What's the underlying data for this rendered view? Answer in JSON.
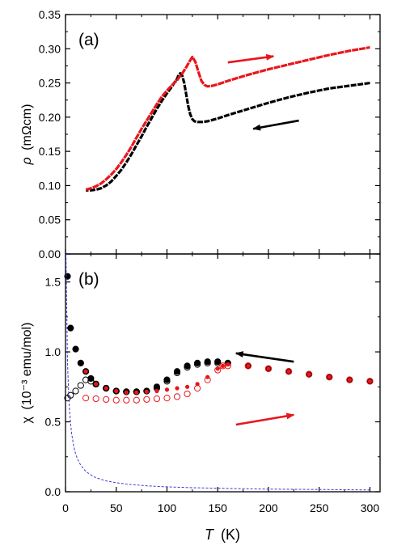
{
  "chart_data": [
    {
      "panel_label": "(a)",
      "type": "line",
      "ylabel_symbol": "ρ",
      "ylabel_unit": "(mΩcm)",
      "ylim": [
        0.0,
        0.35
      ],
      "yticks": [
        "0.00",
        "0.05",
        "0.10",
        "0.15",
        "0.20",
        "0.25",
        "0.30",
        "0.35"
      ],
      "xlim": [
        0,
        310
      ],
      "series": [
        {
          "color": "#000000",
          "direction": "cooling",
          "x": [
            300,
            280,
            260,
            240,
            220,
            200,
            180,
            160,
            150,
            140,
            135,
            130,
            127,
            125,
            123,
            121,
            119,
            117,
            115,
            113,
            111,
            110,
            108,
            105,
            100,
            95,
            90,
            85,
            80,
            75,
            70,
            65,
            60,
            55,
            50,
            45,
            40,
            35,
            30,
            25,
            20
          ],
          "y": [
            0.25,
            0.246,
            0.242,
            0.236,
            0.229,
            0.221,
            0.212,
            0.203,
            0.198,
            0.194,
            0.193,
            0.193,
            0.194,
            0.197,
            0.204,
            0.216,
            0.233,
            0.25,
            0.261,
            0.264,
            0.26,
            0.256,
            0.252,
            0.245,
            0.235,
            0.224,
            0.212,
            0.199,
            0.186,
            0.172,
            0.159,
            0.146,
            0.134,
            0.123,
            0.114,
            0.106,
            0.1,
            0.096,
            0.094,
            0.093,
            0.093
          ]
        },
        {
          "color": "#e8161b",
          "direction": "warming",
          "x": [
            20,
            25,
            30,
            35,
            40,
            45,
            50,
            55,
            60,
            65,
            70,
            75,
            80,
            85,
            90,
            95,
            100,
            105,
            110,
            113,
            116,
            119,
            122,
            125,
            128,
            131,
            134,
            137,
            140,
            145,
            150,
            160,
            180,
            200,
            220,
            240,
            260,
            280,
            300
          ],
          "y": [
            0.094,
            0.096,
            0.099,
            0.103,
            0.109,
            0.116,
            0.124,
            0.134,
            0.145,
            0.157,
            0.17,
            0.183,
            0.195,
            0.207,
            0.219,
            0.23,
            0.239,
            0.247,
            0.254,
            0.26,
            0.266,
            0.273,
            0.281,
            0.288,
            0.281,
            0.266,
            0.253,
            0.247,
            0.245,
            0.246,
            0.248,
            0.253,
            0.262,
            0.27,
            0.277,
            0.284,
            0.291,
            0.297,
            0.302
          ]
        }
      ],
      "arrows": [
        {
          "color": "#e8161b",
          "from": [
            160,
            0.28
          ],
          "to": [
            205,
            0.289
          ]
        },
        {
          "color": "#000000",
          "from": [
            230,
            0.195
          ],
          "to": [
            185,
            0.183
          ]
        }
      ]
    },
    {
      "panel_label": "(b)",
      "type": "scatter",
      "ylabel_symbol": "χ",
      "ylabel_unit": "(10⁻³ emu/mol)",
      "xlabel_symbol": "T",
      "xlabel_unit": "(K)",
      "ylim": [
        0.0,
        1.7
      ],
      "yticks": [
        "0.0",
        "0.5",
        "1.0",
        "1.5"
      ],
      "xlim": [
        0,
        310
      ],
      "xticks": [
        "0",
        "50",
        "100",
        "150",
        "200",
        "250",
        "300"
      ],
      "series": [
        {
          "marker": "filled-circle",
          "color": "#000000",
          "direction": "cooling",
          "x": [
            2,
            5,
            10,
            15,
            20,
            25,
            30,
            40,
            50,
            60,
            70,
            80,
            90,
            100,
            110,
            120,
            130,
            140,
            150,
            160,
            180,
            200,
            220,
            240,
            260,
            280,
            300
          ],
          "y": [
            1.54,
            1.17,
            1.02,
            0.92,
            0.86,
            0.81,
            0.77,
            0.74,
            0.72,
            0.715,
            0.715,
            0.72,
            0.75,
            0.8,
            0.86,
            0.9,
            0.92,
            0.93,
            0.93,
            0.92,
            0.9,
            0.88,
            0.86,
            0.84,
            0.82,
            0.8,
            0.79
          ]
        },
        {
          "marker": "open-circle",
          "color": "#000000",
          "direction": "cooling",
          "x": [
            2,
            5,
            10,
            15,
            20,
            25,
            30,
            40,
            50,
            60,
            70,
            80,
            90,
            100,
            110,
            120,
            130,
            140,
            150
          ],
          "y": [
            0.67,
            0.69,
            0.72,
            0.76,
            0.8,
            0.79,
            0.77,
            0.74,
            0.72,
            0.715,
            0.715,
            0.72,
            0.74,
            0.79,
            0.85,
            0.89,
            0.91,
            0.92,
            0.92
          ]
        },
        {
          "marker": "filled-circle-small",
          "color": "#e8161b",
          "direction": "warming",
          "x": [
            20,
            30,
            40,
            50,
            60,
            70,
            80,
            90,
            100,
            110,
            120,
            130,
            140,
            150,
            155,
            160,
            180,
            200,
            220,
            240,
            260,
            280,
            300
          ],
          "y": [
            0.86,
            0.77,
            0.74,
            0.72,
            0.71,
            0.71,
            0.715,
            0.72,
            0.73,
            0.74,
            0.75,
            0.77,
            0.82,
            0.88,
            0.9,
            0.91,
            0.9,
            0.88,
            0.86,
            0.84,
            0.82,
            0.8,
            0.79
          ]
        },
        {
          "marker": "open-circle",
          "color": "#e8161b",
          "direction": "warming",
          "x": [
            20,
            30,
            40,
            50,
            60,
            70,
            80,
            90,
            100,
            110,
            120,
            130,
            140,
            150,
            155,
            160,
            180,
            200,
            220,
            240,
            260,
            280,
            300
          ],
          "y": [
            0.67,
            0.665,
            0.66,
            0.655,
            0.655,
            0.655,
            0.66,
            0.665,
            0.67,
            0.68,
            0.7,
            0.74,
            0.8,
            0.87,
            0.9,
            0.9,
            0.9,
            0.88,
            0.86,
            0.84,
            0.82,
            0.8,
            0.79
          ]
        },
        {
          "marker": "dashed-line",
          "color": "#3a3ad8",
          "direction": "",
          "x": [
            0.5,
            1,
            2,
            3,
            4,
            5,
            6,
            8,
            10,
            12,
            15,
            20,
            25,
            30,
            40,
            50,
            60,
            80,
            100,
            120,
            150,
            200,
            250,
            300
          ],
          "y": [
            1.7,
            1.4,
            0.92,
            0.72,
            0.58,
            0.49,
            0.42,
            0.33,
            0.27,
            0.23,
            0.19,
            0.145,
            0.12,
            0.1,
            0.078,
            0.064,
            0.055,
            0.042,
            0.035,
            0.03,
            0.025,
            0.019,
            0.016,
            0.013
          ]
        }
      ],
      "arrows": [
        {
          "color": "#000000",
          "from": [
            225,
            0.93
          ],
          "to": [
            168,
            0.99
          ]
        },
        {
          "color": "#e8161b",
          "from": [
            168,
            0.48
          ],
          "to": [
            225,
            0.55
          ]
        }
      ]
    }
  ]
}
